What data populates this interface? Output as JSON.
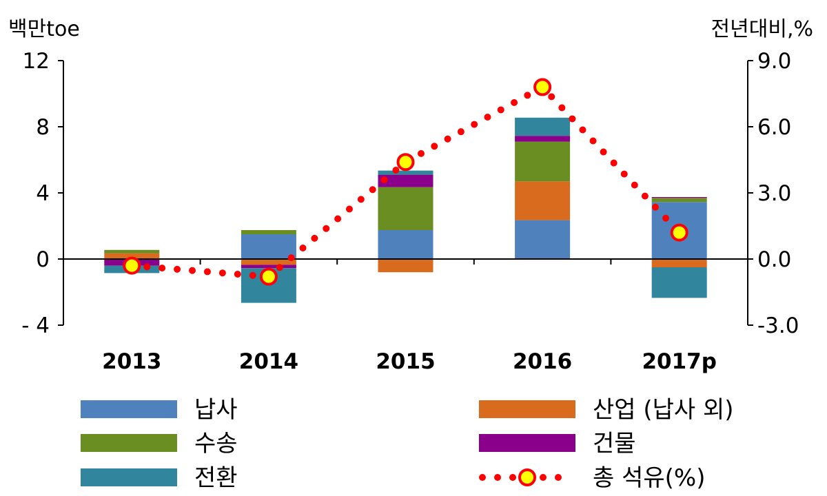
{
  "chart_data": {
    "type": "bar",
    "stacked": true,
    "categories": [
      "2013",
      "2014",
      "2015",
      "2016",
      "2017p"
    ],
    "left_axis": {
      "unit": "백만toe",
      "ylim": [
        -4,
        12
      ],
      "ticks": [
        -4,
        0,
        4,
        8,
        12
      ],
      "tick_labels": [
        "- 4",
        "0",
        "4",
        "8",
        "12"
      ]
    },
    "right_axis": {
      "unit": "전년대비,%",
      "ylim": [
        -3.0,
        9.0
      ],
      "ticks": [
        -3.0,
        0.0,
        3.0,
        6.0,
        9.0
      ],
      "tick_labels": [
        "-3.0",
        "0.0",
        "3.0",
        "6.0",
        "9.0"
      ]
    },
    "series": [
      {
        "name": "납사",
        "color": "#4f81bd",
        "values": [
          0.0,
          1.5,
          1.75,
          2.35,
          3.45
        ]
      },
      {
        "name": "산업 (납사 외)",
        "color": "#d86b1e",
        "values": [
          0.35,
          -0.35,
          -0.8,
          2.35,
          -0.5
        ]
      },
      {
        "name": "수송",
        "color": "#6b8e23",
        "values": [
          0.2,
          0.25,
          2.6,
          2.4,
          0.25
        ]
      },
      {
        "name": "건물",
        "color": "#8b008b",
        "values": [
          -0.4,
          -0.2,
          0.75,
          0.35,
          0.05
        ]
      },
      {
        "name": "전환",
        "color": "#31859c",
        "values": [
          -0.45,
          -2.1,
          0.25,
          1.1,
          -1.85
        ]
      }
    ],
    "line_series": {
      "name": "총 석유(%)",
      "axis": "right",
      "values": [
        -0.3,
        -0.8,
        4.4,
        7.8,
        1.2
      ],
      "line_color": "#ff0000",
      "marker_fill": "#ffff00",
      "marker_edge": "#ff0000",
      "style": "dotted"
    },
    "legend_position": "bottom",
    "grid": false
  }
}
